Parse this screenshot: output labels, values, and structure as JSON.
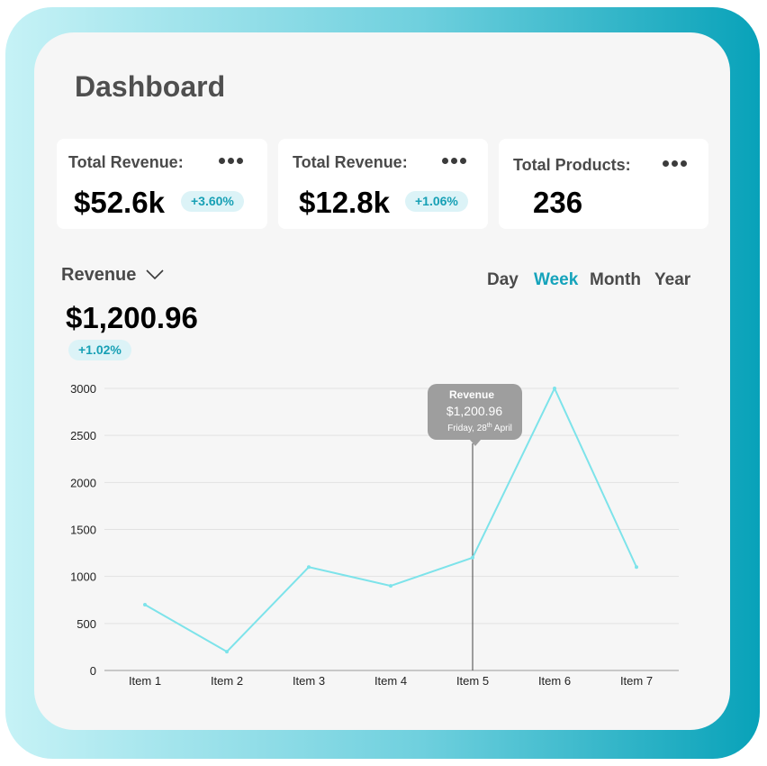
{
  "page": {
    "title": "Dashboard"
  },
  "cards": [
    {
      "label": "Total Revenue:",
      "value": "$52.6k",
      "badge": "+3.60%"
    },
    {
      "label": "Total Revenue:",
      "value": "$12.8k",
      "badge": "+1.06%"
    },
    {
      "label": "Total Products:",
      "value": "236"
    }
  ],
  "revenue": {
    "label": "Revenue",
    "value": "$1,200.96",
    "badge": "+1.02%"
  },
  "periods": [
    "Day",
    "Week",
    "Month",
    "Year"
  ],
  "active_period": "Week",
  "tooltip": {
    "title": "Revenue",
    "value": "$1,200.96",
    "date_prefix": "Friday, 28",
    "date_sup": "th",
    "date_suffix": " April"
  },
  "colors": {
    "accent": "#15a3bb",
    "line": "#7de3ea",
    "badge_bg": "#dcf3f7"
  },
  "chart_data": {
    "type": "line",
    "categories": [
      "Item 1",
      "Item 2",
      "Item 3",
      "Item 4",
      "Item 5",
      "Item 6",
      "Item 7"
    ],
    "values": [
      700,
      200,
      1100,
      900,
      1200,
      3000,
      1100
    ],
    "yticks": [
      0,
      500,
      1000,
      1500,
      2000,
      2500,
      3000
    ],
    "ylim": [
      0,
      3000
    ],
    "grid": true,
    "highlight_index": 4
  }
}
